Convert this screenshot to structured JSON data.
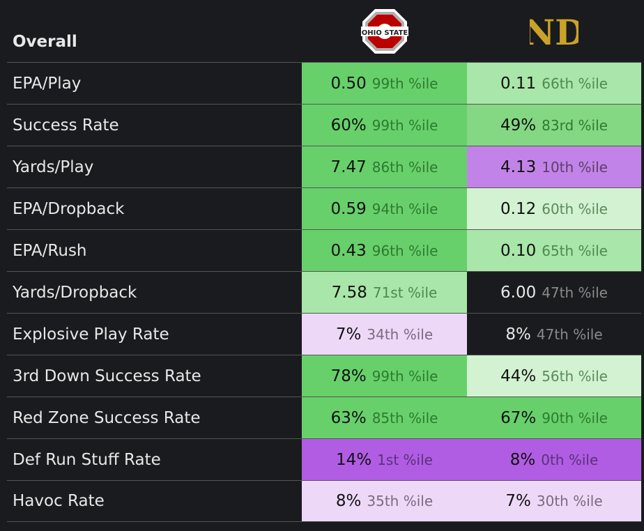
{
  "header": {
    "title": "Overall",
    "team1_logo": "ohio-state-logo",
    "team1_logo_text": "OHIO STATE",
    "team2_logo": "notre-dame-logo",
    "team2_logo_text": "ND"
  },
  "colors": {
    "green_strong": "#67d06b",
    "green_mid": "#84d884",
    "green_light": "#a9e6a9",
    "green_pale": "#d2f2d1",
    "neutral": "#1a1b1e",
    "purple_pale": "#eed8f8",
    "purple_mid": "#c283e8",
    "purple_strong": "#b05de4",
    "osu_red": "#bb0000",
    "nd_gold": "#c9a227"
  },
  "rows": [
    {
      "label": "EPA/Play",
      "t1": {
        "value": "0.50",
        "pct": "99th %ile",
        "color": "g1"
      },
      "t2": {
        "value": "0.11",
        "pct": "66th %ile",
        "color": "g3"
      }
    },
    {
      "label": "Success Rate",
      "t1": {
        "value": "60%",
        "pct": "99th %ile",
        "color": "g1"
      },
      "t2": {
        "value": "49%",
        "pct": "83rd %ile",
        "color": "g2"
      }
    },
    {
      "label": "Yards/Play",
      "t1": {
        "value": "7.47",
        "pct": "86th %ile",
        "color": "g1"
      },
      "t2": {
        "value": "4.13",
        "pct": "10th %ile",
        "color": "p2"
      }
    },
    {
      "label": "EPA/Dropback",
      "t1": {
        "value": "0.59",
        "pct": "94th %ile",
        "color": "g1"
      },
      "t2": {
        "value": "0.12",
        "pct": "60th %ile",
        "color": "g4"
      }
    },
    {
      "label": "EPA/Rush",
      "t1": {
        "value": "0.43",
        "pct": "96th %ile",
        "color": "g1"
      },
      "t2": {
        "value": "0.10",
        "pct": "65th %ile",
        "color": "g3"
      }
    },
    {
      "label": "Yards/Dropback",
      "t1": {
        "value": "7.58",
        "pct": "71st %ile",
        "color": "g3"
      },
      "t2": {
        "value": "6.00",
        "pct": "47th %ile",
        "color": "none"
      }
    },
    {
      "label": "Explosive Play Rate",
      "t1": {
        "value": "7%",
        "pct": "34th %ile",
        "color": "p1"
      },
      "t2": {
        "value": "8%",
        "pct": "47th %ile",
        "color": "none"
      }
    },
    {
      "label": "3rd Down Success Rate",
      "t1": {
        "value": "78%",
        "pct": "99th %ile",
        "color": "g1"
      },
      "t2": {
        "value": "44%",
        "pct": "56th %ile",
        "color": "g4"
      }
    },
    {
      "label": "Red Zone Success Rate",
      "t1": {
        "value": "63%",
        "pct": "85th %ile",
        "color": "g1"
      },
      "t2": {
        "value": "67%",
        "pct": "90th %ile",
        "color": "g1"
      }
    },
    {
      "label": "Def Run Stuff Rate",
      "t1": {
        "value": "14%",
        "pct": "1st %ile",
        "color": "p3"
      },
      "t2": {
        "value": "8%",
        "pct": "0th %ile",
        "color": "p3"
      }
    },
    {
      "label": "Havoc Rate",
      "t1": {
        "value": "8%",
        "pct": "35th %ile",
        "color": "p1"
      },
      "t2": {
        "value": "7%",
        "pct": "30th %ile",
        "color": "p1"
      }
    }
  ]
}
